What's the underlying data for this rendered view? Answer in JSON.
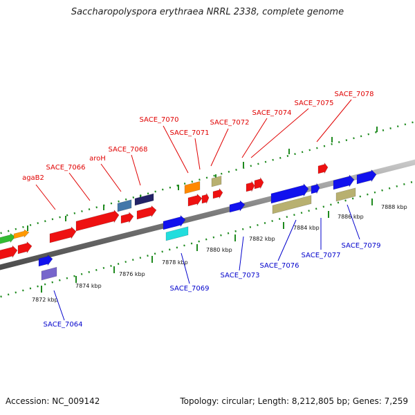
{
  "title": "Saccharopolyspora erythraea NRRL 2338, complete genome",
  "footer": {
    "accession": "Accession: NC_009142",
    "summary": "Topology: circular; Length: 8,212,805 bp; Genes: 7,259"
  },
  "colors": {
    "backbone": "#8a8a8a",
    "ruler": "#1e8a1e",
    "upper_label": "#e00000",
    "lower_label": "#0000cc"
  },
  "ticks": [
    {
      "label": "7872 kbp"
    },
    {
      "label": "7874 kbp"
    },
    {
      "label": "7876 kbp"
    },
    {
      "label": "7878 kbp"
    },
    {
      "label": "7880 kbp"
    },
    {
      "label": "7882 kbp"
    },
    {
      "label": "7884 kbp"
    },
    {
      "label": "7886 kbp"
    },
    {
      "label": "7888 kbp"
    }
  ],
  "upper_labels": [
    {
      "text": "agaB2"
    },
    {
      "text": "SACE_7066"
    },
    {
      "text": "aroH"
    },
    {
      "text": "SACE_7068"
    },
    {
      "text": "SACE_7070"
    },
    {
      "text": "SACE_7071"
    },
    {
      "text": "SACE_7072"
    },
    {
      "text": "SACE_7074"
    },
    {
      "text": "SACE_7075"
    },
    {
      "text": "SACE_7078"
    }
  ],
  "lower_labels": [
    {
      "text": "SACE_7064"
    },
    {
      "text": "SACE_7069"
    },
    {
      "text": "SACE_7073"
    },
    {
      "text": "SACE_7076"
    },
    {
      "text": "SACE_7077"
    },
    {
      "text": "SACE_7079"
    }
  ],
  "genes": [
    {
      "name": "gene-green-left",
      "color": "#33bb33"
    },
    {
      "name": "gene-orange-left",
      "color": "#ff9900"
    },
    {
      "name": "gene-red-left-1",
      "color": "#ee1111"
    },
    {
      "name": "gene-red-left-2",
      "color": "#ee1111"
    },
    {
      "name": "gene-blue-7064a",
      "color": "#1111ee"
    },
    {
      "name": "gene-purple-7064",
      "color": "#7766cc"
    },
    {
      "name": "gene-red-agaB2",
      "color": "#ee1111"
    },
    {
      "name": "gene-red-7066",
      "color": "#ee1111"
    },
    {
      "name": "gene-red-small-1",
      "color": "#ee1111"
    },
    {
      "name": "gene-steelblue-aroH",
      "color": "#4477aa"
    },
    {
      "name": "gene-navy-7068",
      "color": "#222266"
    },
    {
      "name": "gene-red-7068",
      "color": "#ee1111"
    },
    {
      "name": "gene-blue-7069a",
      "color": "#1111ee"
    },
    {
      "name": "gene-cyan-7069",
      "color": "#22dddd"
    },
    {
      "name": "gene-orange-7070",
      "color": "#ff8800"
    },
    {
      "name": "gene-red-7070b",
      "color": "#ee1111"
    },
    {
      "name": "gene-red-7071",
      "color": "#ee1111"
    },
    {
      "name": "gene-khaki-7072",
      "color": "#b8b070"
    },
    {
      "name": "gene-red-7072b",
      "color": "#ee1111"
    },
    {
      "name": "gene-blue-7073",
      "color": "#1111ee"
    },
    {
      "name": "gene-red-7074a",
      "color": "#ee1111"
    },
    {
      "name": "gene-red-7074b",
      "color": "#ee1111"
    },
    {
      "name": "gene-blue-7076",
      "color": "#1111ee"
    },
    {
      "name": "gene-khaki-7076",
      "color": "#b8b070"
    },
    {
      "name": "gene-blue-7077",
      "color": "#1111ee"
    },
    {
      "name": "gene-red-7078",
      "color": "#ee1111"
    },
    {
      "name": "gene-blue-7079a",
      "color": "#1111ee"
    },
    {
      "name": "gene-khaki-7079",
      "color": "#b8b070"
    },
    {
      "name": "gene-blue-7079b",
      "color": "#1111ee"
    }
  ]
}
